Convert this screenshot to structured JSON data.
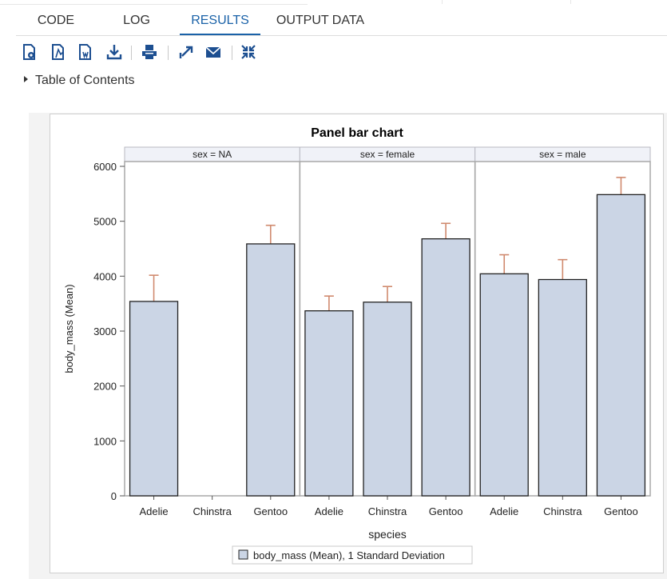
{
  "tabs": [
    {
      "label": "CODE",
      "active": false
    },
    {
      "label": "LOG",
      "active": false
    },
    {
      "label": "RESULTS",
      "active": true
    },
    {
      "label": "OUTPUT DATA",
      "active": false
    }
  ],
  "toolbar": {
    "icons": [
      "html-report-icon",
      "pdf-report-icon",
      "word-report-icon",
      "download-icon",
      "print-icon",
      "open-in-new-window-icon",
      "email-icon",
      "collapse-icon"
    ]
  },
  "toc": {
    "label": "Table of Contents"
  },
  "colors": {
    "accent": "#1a62a8",
    "bar_fill": "#cbd5e5",
    "error_bar": "#d08a6e",
    "panel_header": "#f0f2f8"
  },
  "chart_data": {
    "type": "bar",
    "title": "Panel bar chart",
    "xlabel": "species",
    "ylabel": "body_mass (Mean)",
    "ylim": [
      0,
      6000
    ],
    "yticks": [
      0,
      1000,
      2000,
      3000,
      4000,
      5000,
      6000
    ],
    "categories": [
      "Adelie",
      "Chinstra",
      "Gentoo"
    ],
    "legend": {
      "label": "body_mass (Mean), 1 Standard Deviation",
      "position": "bottom"
    },
    "panels": [
      {
        "label": "sex = NA",
        "values": [
          3540,
          null,
          4588
        ],
        "errors": [
          477,
          null,
          338
        ]
      },
      {
        "label": "sex = female",
        "values": [
          3369,
          3527,
          4680
        ],
        "errors": [
          269,
          285,
          282
        ]
      },
      {
        "label": "sex = male",
        "values": [
          4043,
          3939,
          5485
        ],
        "errors": [
          347,
          362,
          313
        ]
      }
    ]
  }
}
